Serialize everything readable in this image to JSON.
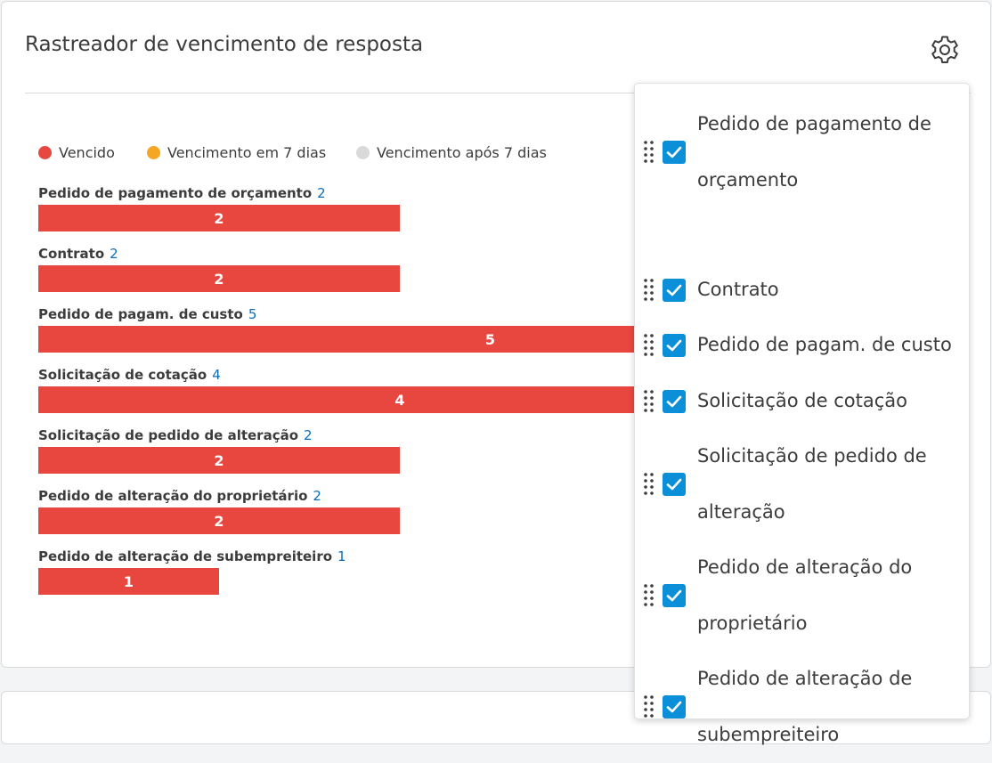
{
  "widget": {
    "title": "Rastreador de vencimento de resposta"
  },
  "legend": [
    {
      "label": "Vencido",
      "color": "#e8473f"
    },
    {
      "label": "Vencimento em 7 dias",
      "color": "#f5a623"
    },
    {
      "label": "Vencimento após 7 dias",
      "color": "#d9d9d9"
    }
  ],
  "chart_data": {
    "type": "bar",
    "orientation": "horizontal",
    "categories": [
      "Pedido de pagamento de orçamento",
      "Contrato",
      "Pedido de pagam. de custo",
      "Solicitação de cotação",
      "Solicitação de pedido de alteração",
      "Pedido de alteração do proprietário",
      "Pedido de alteração de subempreiteiro"
    ],
    "series": [
      {
        "name": "Vencido",
        "color": "#e8473f",
        "values": [
          2,
          2,
          5,
          4,
          2,
          2,
          1
        ]
      }
    ],
    "totals": [
      "2",
      "2",
      "5",
      "4",
      "2",
      "2",
      "1"
    ],
    "bar_labels": [
      "2",
      "2",
      "5",
      "4",
      "2",
      "2",
      "1"
    ]
  },
  "settings_popover": {
    "items": [
      {
        "label": "Pedido de pagamento de orçamento",
        "checked": true
      },
      {
        "label": "Contrato",
        "checked": true
      },
      {
        "label": "Pedido de pagam. de custo",
        "checked": true
      },
      {
        "label": "Solicitação de cotação",
        "checked": true
      },
      {
        "label": "Solicitação de pedido de alteração",
        "checked": true
      },
      {
        "label": "Pedido de alteração do proprietário",
        "checked": true
      },
      {
        "label": "Pedido de alteração de subempreiteiro",
        "checked": true
      }
    ]
  }
}
